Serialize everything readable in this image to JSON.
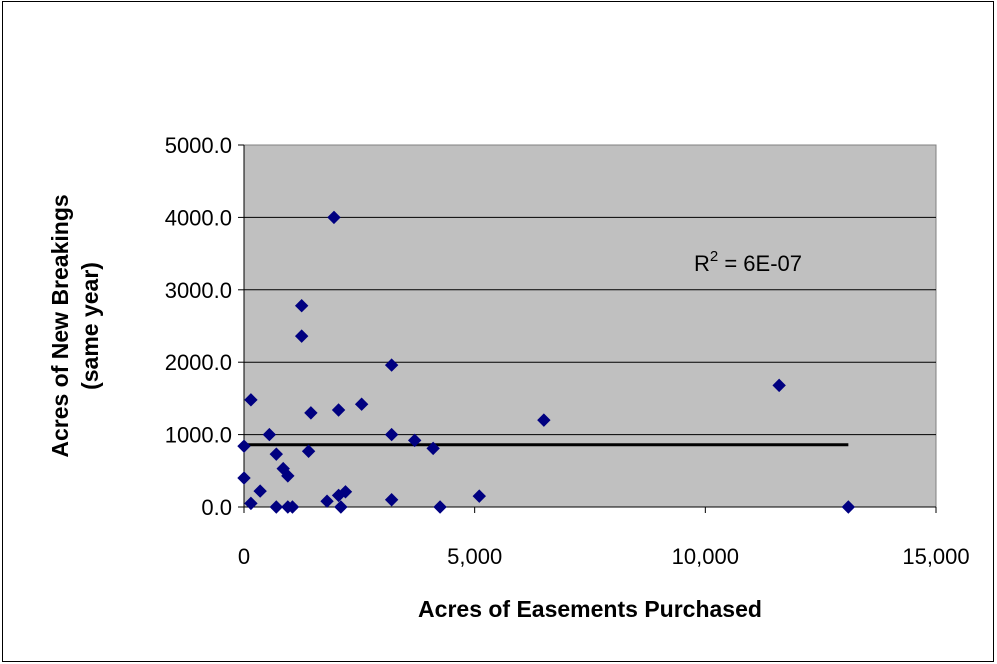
{
  "chart_data": {
    "type": "scatter",
    "title": "",
    "xlabel": "Acres of Easements Purchased",
    "ylabel_line1": "Acres of New Breakings",
    "ylabel_line2": "(same year)",
    "xlim": [
      0,
      15000
    ],
    "ylim": [
      0,
      5000
    ],
    "x_ticks": [
      0,
      5000,
      10000,
      15000
    ],
    "x_tick_labels": [
      "0",
      "5,000",
      "10,000",
      "15,000"
    ],
    "y_ticks": [
      0,
      1000,
      2000,
      3000,
      4000,
      5000
    ],
    "y_tick_labels": [
      "0.0",
      "1000.0",
      "2000.0",
      "3000.0",
      "4000.0",
      "5000.0"
    ],
    "grid": "horizontal",
    "plot_background": "#c0c0c0",
    "marker_color": "#000080",
    "marker_shape": "diamond",
    "trendline": {
      "x": [
        0,
        13100
      ],
      "y": [
        860,
        860
      ],
      "color": "#000000"
    },
    "annotation": {
      "r2_base": "R",
      "r2_exp": "2",
      "r2_rest": " = 6E-07"
    },
    "points": [
      {
        "x": 0,
        "y": 840
      },
      {
        "x": 0,
        "y": 400
      },
      {
        "x": 150,
        "y": 1480
      },
      {
        "x": 150,
        "y": 50
      },
      {
        "x": 350,
        "y": 220
      },
      {
        "x": 550,
        "y": 1000
      },
      {
        "x": 700,
        "y": 730
      },
      {
        "x": 700,
        "y": 0
      },
      {
        "x": 850,
        "y": 530
      },
      {
        "x": 950,
        "y": 430
      },
      {
        "x": 950,
        "y": 0
      },
      {
        "x": 1050,
        "y": 0
      },
      {
        "x": 1250,
        "y": 2780
      },
      {
        "x": 1250,
        "y": 2360
      },
      {
        "x": 1400,
        "y": 770
      },
      {
        "x": 1450,
        "y": 1300
      },
      {
        "x": 1800,
        "y": 80
      },
      {
        "x": 1950,
        "y": 4000
      },
      {
        "x": 2050,
        "y": 1340
      },
      {
        "x": 2050,
        "y": 160
      },
      {
        "x": 2100,
        "y": 0
      },
      {
        "x": 2200,
        "y": 210
      },
      {
        "x": 2550,
        "y": 1420
      },
      {
        "x": 3200,
        "y": 1960
      },
      {
        "x": 3200,
        "y": 1000
      },
      {
        "x": 3200,
        "y": 100
      },
      {
        "x": 3700,
        "y": 920
      },
      {
        "x": 4100,
        "y": 810
      },
      {
        "x": 4250,
        "y": 0
      },
      {
        "x": 5100,
        "y": 150
      },
      {
        "x": 6500,
        "y": 1200
      },
      {
        "x": 11600,
        "y": 1680
      },
      {
        "x": 13100,
        "y": 0
      }
    ]
  }
}
